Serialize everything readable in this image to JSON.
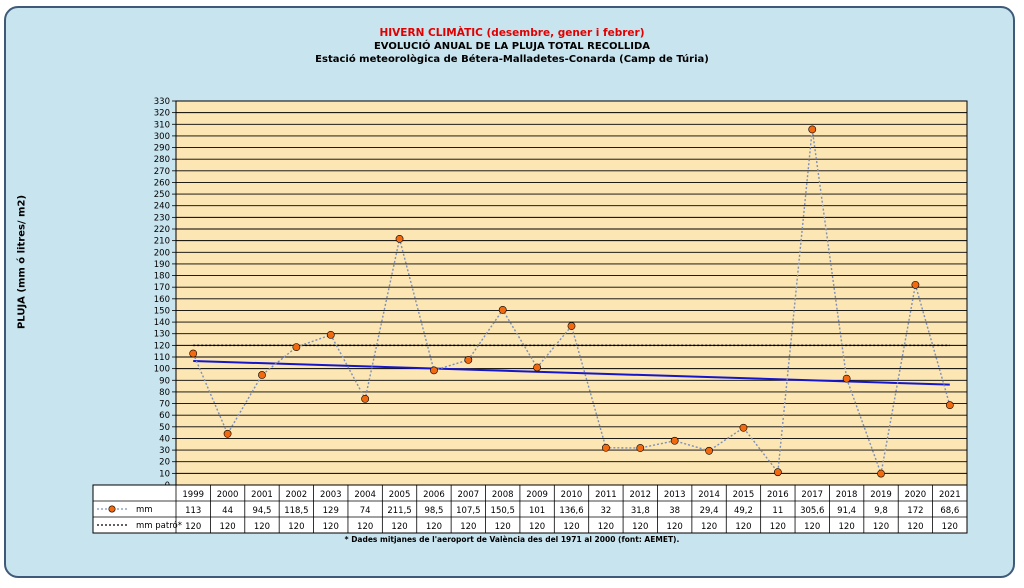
{
  "titles": {
    "line1": "HIVERN CLIMÀTIC (desembre, gener i febrer)",
    "line2": "EVOLUCIÓ ANUAL DE LA PLUJA TOTAL RECOLLIDA",
    "line3": "Estació meteorològica de Bétera-Malladetes-Conarda (Camp de Túria)"
  },
  "footnote": "* Dades mitjanes de l'aeroport de València des del 1971 al 2000 (font: AEMET).",
  "colors": {
    "frame_bg": "#c8e4ee",
    "plot_bg": "#fbe6b4",
    "series_line": "#7d8fb8",
    "marker": "#f26a10",
    "normal_line": "#000000",
    "trend_line": "#1515cc"
  },
  "chart_data": {
    "type": "line",
    "ylabel": "PLUJA (mm ó litres/ m2)",
    "ylim": [
      0,
      330
    ],
    "ytick_step": 10,
    "grid": true,
    "categories": [
      "1999",
      "2000",
      "2001",
      "2002",
      "2003",
      "2004",
      "2005",
      "2006",
      "2007",
      "2008",
      "2009",
      "2010",
      "2011",
      "2012",
      "2013",
      "2014",
      "2015",
      "2016",
      "2017",
      "2018",
      "2019",
      "2020",
      "2021"
    ],
    "series": [
      {
        "name": "mm",
        "style": "dotted-line-with-markers",
        "values": [
          113,
          44,
          94.5,
          118.5,
          129,
          74,
          211.5,
          98.5,
          107.5,
          150.5,
          101,
          136.6,
          32,
          31.8,
          38,
          29.4,
          49.2,
          11,
          305.6,
          91.4,
          9.8,
          172,
          68.6
        ],
        "labels": [
          "113",
          "44",
          "94,5",
          "118,5",
          "129",
          "74",
          "211,5",
          "98,5",
          "107,5",
          "150,5",
          "101",
          "136,6",
          "32",
          "31,8",
          "38",
          "29,4",
          "49,2",
          "11",
          "305,6",
          "91,4",
          "9,8",
          "172",
          "68,6"
        ]
      },
      {
        "name": "mm patró*",
        "style": "dotted-line",
        "values": [
          120,
          120,
          120,
          120,
          120,
          120,
          120,
          120,
          120,
          120,
          120,
          120,
          120,
          120,
          120,
          120,
          120,
          120,
          120,
          120,
          120,
          120,
          120
        ],
        "labels": [
          "120",
          "120",
          "120",
          "120",
          "120",
          "120",
          "120",
          "120",
          "120",
          "120",
          "120",
          "120",
          "120",
          "120",
          "120",
          "120",
          "120",
          "120",
          "120",
          "120",
          "120",
          "120",
          "120"
        ]
      }
    ],
    "trendline": {
      "type": "linear",
      "of_series": "mm"
    }
  }
}
